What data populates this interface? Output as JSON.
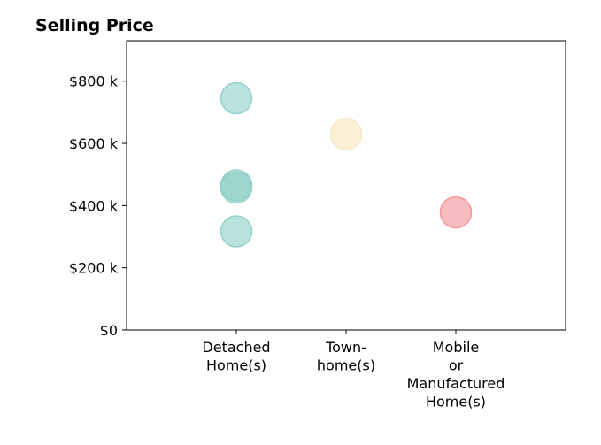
{
  "chart_data": {
    "type": "scatter",
    "title": "Selling Price",
    "xlabel": "",
    "ylabel": "",
    "categories": [
      [
        "Detached",
        "Home(s)"
      ],
      [
        "Town-",
        "home(s)"
      ],
      [
        "Mobile",
        "or",
        "Manufactured",
        "Home(s)"
      ]
    ],
    "xlim": [
      -1,
      3
    ],
    "ylim": [
      0,
      930000
    ],
    "y_ticks": [
      {
        "value": 0,
        "label": "$0"
      },
      {
        "value": 200000,
        "label": "$200 k"
      },
      {
        "value": 400000,
        "label": "$400 k"
      },
      {
        "value": 600000,
        "label": "$600 k"
      },
      {
        "value": 800000,
        "label": "$800 k"
      }
    ],
    "grid": false,
    "colors": [
      "#8dd3c7",
      "#ffffb3",
      "#fb8072"
    ],
    "marker_colors": [
      "#8ccfc4",
      "#f7e6bb",
      "#f29095"
    ],
    "points": [
      {
        "category": 0,
        "value": 745000
      },
      {
        "category": 0,
        "value": 465000
      },
      {
        "category": 0,
        "value": 458000
      },
      {
        "category": 0,
        "value": 317000
      },
      {
        "category": 1,
        "value": 630000
      },
      {
        "category": 2,
        "value": 378000
      }
    ]
  }
}
